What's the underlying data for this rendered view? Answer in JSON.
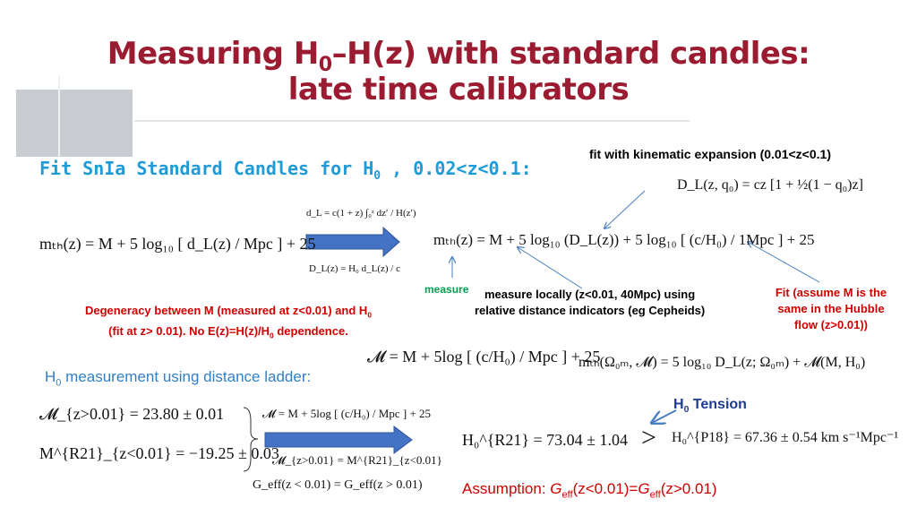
{
  "title": {
    "line1": [
      "Measuring H",
      "0",
      "–H(z) with standard candles:"
    ],
    "line2": "late time calibrators"
  },
  "fit_heading": [
    "Fit SnIa Standard Candles for H",
    "0",
    " , 0.02<z<0.1:"
  ],
  "kinematic_note": "fit with kinematic expansion (0.01<z<0.1)",
  "equations": {
    "kinematic": "D_L(z, q₀) = cz [1 + ½(1 − q₀)z]",
    "dL_integral": "d_L = c(1 + z) ∫₀ᶻ dz′ / H(z′)",
    "DL_def": "D_L(z) = H₀ d_L(z) / c",
    "mth_left": "mₜₕ(z) = M + 5 log₁₀ [ d_L(z) / Mpc ] + 25",
    "mth_right": "mₜₕ(z) = M + 5 log₁₀ (D_L(z)) + 5 log₁₀ [ (c/H₀) / 1Mpc ] + 25",
    "calM": "𝓜 = M + 5log [ (c/H₀) / Mpc ] + 25",
    "mth_omega": "mₜₕ(Ω₀ₘ, 𝓜) = 5 log₁₀ D_L(z; Ω₀ₘ) + 𝓜(M, H₀)",
    "M_z": "𝓜_{z>0.01} = 23.80 ± 0.01",
    "MR21": "M^{R21}_{z<0.01} = −19.25 ± 0.03",
    "brace_1": "𝓜 = M + 5log [ (c/H₀) / Mpc ] + 25",
    "brace_2": "𝓜_{z>0.01} = M^{R21}_{z<0.01}",
    "Geff": "G_eff(z < 0.01) = G_eff(z > 0.01)",
    "H0R21": "H₀^{R21} = 73.04 ± 1.04",
    "gt": ">",
    "H0P18": "H₀^{P18} = 67.36 ± 0.54 km s⁻¹Mpc⁻¹"
  },
  "measure_label": "measure",
  "measure_locally": [
    "measure locally (z<0.01, 40Mpc) using",
    "relative distance indicators (eg Cepheids)"
  ],
  "fit_note": [
    "Fit",
    " (assume M is the",
    "same in the Hubble",
    "flow (z>0.01))"
  ],
  "degeneracy": [
    "Degeneracy between M (measured at z<0.01) and H",
    "0",
    "(fit at z> 0.01). No E(z)=H(z)/H",
    "0",
    " dependence."
  ],
  "ladder_heading": [
    "H",
    "0",
    " measurement using distance ladder:"
  ],
  "tension": [
    "H",
    "0",
    " Tension"
  ],
  "assumption": [
    "Assumption:  ",
    "G",
    "eff",
    "(z<0.01)=",
    "G",
    "eff",
    "(z>0.01)"
  ]
}
